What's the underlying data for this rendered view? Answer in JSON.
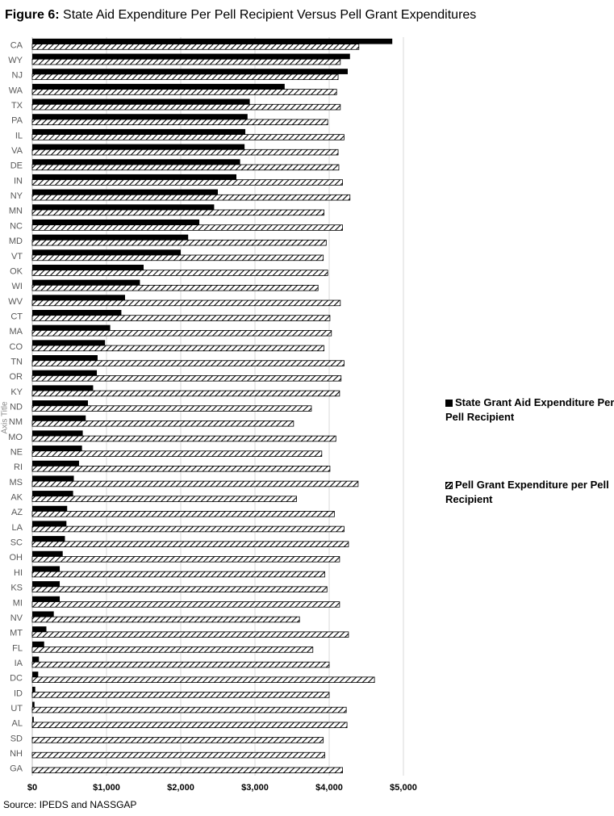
{
  "header": {
    "figure_label": "Figure 6:",
    "title": "State Aid Expenditure Per Pell Recipient Versus Pell Grant Expenditures"
  },
  "footer": {
    "source": "Source: IPEDS and NASSGAP"
  },
  "chart_data": {
    "type": "bar",
    "orientation": "horizontal",
    "title": "State Aid Expenditure Per Pell Recipient Versus Pell Grant Expenditures",
    "ylabel": "Axis Title",
    "xlabel": "",
    "xlim": [
      0,
      5000
    ],
    "x_ticks": [
      "$0",
      "$1,000",
      "$2,000",
      "$3,000",
      "$4,000",
      "$5,000"
    ],
    "grid": true,
    "legend_position": "right",
    "categories": [
      "CA",
      "WY",
      "NJ",
      "WA",
      "TX",
      "PA",
      "IL",
      "VA",
      "DE",
      "IN",
      "NY",
      "MN",
      "NC",
      "MD",
      "VT",
      "OK",
      "WI",
      "WV",
      "CT",
      "MA",
      "CO",
      "TN",
      "OR",
      "KY",
      "ND",
      "NM",
      "MO",
      "NE",
      "RI",
      "MS",
      "AK",
      "AZ",
      "LA",
      "SC",
      "OH",
      "HI",
      "KS",
      "MI",
      "NV",
      "MT",
      "FL",
      "IA",
      "DC",
      "ID",
      "UT",
      "AL",
      "SD",
      "NH",
      "GA"
    ],
    "series": [
      {
        "name": "State Grant Aid Expenditure Per Pell Recipient",
        "style": "solid",
        "color": "#000000",
        "values": [
          4850,
          4280,
          4250,
          3400,
          2930,
          2900,
          2870,
          2860,
          2800,
          2750,
          2500,
          2450,
          2250,
          2100,
          2000,
          1500,
          1450,
          1250,
          1200,
          1050,
          980,
          880,
          870,
          820,
          750,
          720,
          680,
          670,
          630,
          560,
          550,
          470,
          460,
          440,
          410,
          370,
          370,
          370,
          290,
          190,
          160,
          90,
          80,
          40,
          30,
          20,
          0,
          0,
          0
        ]
      },
      {
        "name": "Pell Grant Expenditure per Pell Recipient",
        "style": "hatched",
        "color": "#000000",
        "values": [
          4400,
          4150,
          4120,
          4100,
          4150,
          3980,
          4200,
          4120,
          4130,
          4180,
          4280,
          3930,
          4180,
          3960,
          3920,
          3980,
          3850,
          4150,
          4010,
          4030,
          3930,
          4200,
          4160,
          4140,
          3760,
          3520,
          4090,
          3900,
          4010,
          4390,
          3560,
          4070,
          4200,
          4260,
          4140,
          3940,
          3970,
          4140,
          3600,
          4260,
          3780,
          4000,
          4610,
          4000,
          4230,
          4240,
          3920,
          3940,
          4180
        ]
      }
    ]
  }
}
